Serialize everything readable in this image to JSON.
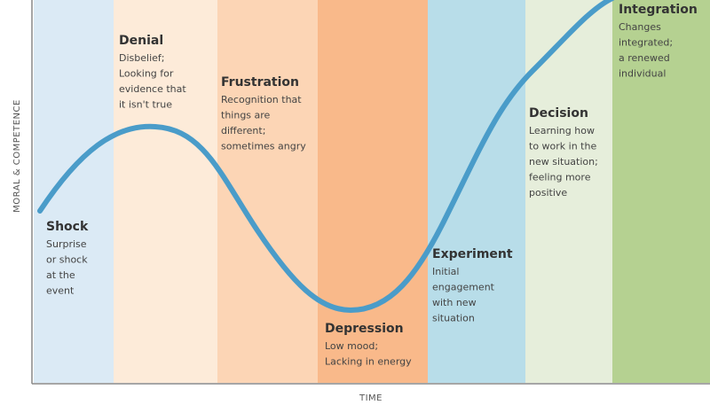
{
  "y_axis_label": "MORAL & COMPETENCE",
  "x_axis_label": "TIME",
  "stages": [
    {
      "title": "Shock",
      "lines": [
        "Surprise",
        "or shock",
        "at the",
        "event"
      ]
    },
    {
      "title": "Denial",
      "lines": [
        "Disbelief;",
        "Looking for",
        "evidence that",
        "it isn't true"
      ]
    },
    {
      "title": "Frustration",
      "lines": [
        "Recognition that",
        "things are",
        "different;",
        "sometimes angry"
      ]
    },
    {
      "title": "Depression",
      "lines": [
        "Low mood;",
        "Lacking in energy"
      ]
    },
    {
      "title": "Experiment",
      "lines": [
        "Initial",
        "engagement",
        "with new",
        "situation"
      ]
    },
    {
      "title": "Decision",
      "lines": [
        "Learning how",
        "to work in the",
        "new situation;",
        "feeling more",
        "positive"
      ]
    },
    {
      "title": "Integration",
      "lines": [
        "Changes",
        "integrated;",
        "a renewed",
        "individual"
      ]
    }
  ]
}
